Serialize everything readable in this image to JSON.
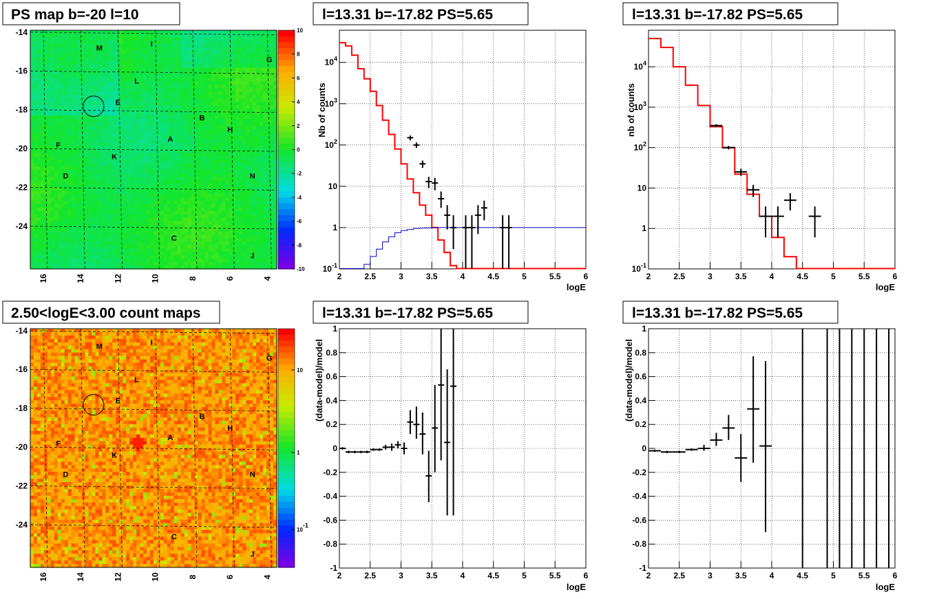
{
  "colors": {
    "model": "#ff0000",
    "efficiency": "#0000cc",
    "data": "#000000"
  },
  "map1": {
    "title": "PS map b=-20 l=10",
    "yticks": [
      "-14",
      "-16",
      "-18",
      "-20",
      "-22",
      "-24"
    ],
    "xticks": [
      "16",
      "14",
      "12",
      "10",
      "8",
      "6",
      "4"
    ],
    "palette_labels": [
      "10",
      "8",
      "6",
      "4",
      "2",
      "0",
      "-2",
      "-4",
      "-6",
      "-8",
      "-10"
    ],
    "sources": [
      {
        "label": "M",
        "l": 13.0,
        "b": -14.8
      },
      {
        "label": "I",
        "l": 10.2,
        "b": -14.6
      },
      {
        "label": "G",
        "l": 3.9,
        "b": -15.4
      },
      {
        "label": "L",
        "l": 11.0,
        "b": -16.5
      },
      {
        "label": "E",
        "l": 12.0,
        "b": -17.6
      },
      {
        "label": "B",
        "l": 7.5,
        "b": -18.4
      },
      {
        "label": "H",
        "l": 6.0,
        "b": -19.0
      },
      {
        "label": "A",
        "l": 9.2,
        "b": -19.5
      },
      {
        "label": "F",
        "l": 15.2,
        "b": -19.8
      },
      {
        "label": "K",
        "l": 12.2,
        "b": -20.4
      },
      {
        "label": "D",
        "l": 14.8,
        "b": -21.4
      },
      {
        "label": "N",
        "l": 4.8,
        "b": -21.4
      },
      {
        "label": "C",
        "l": 9.0,
        "b": -24.6
      },
      {
        "label": "J",
        "l": 4.8,
        "b": -25.5
      }
    ],
    "circle": {
      "l": 13.31,
      "b": -17.82
    }
  },
  "map2": {
    "title": "2.50<logE<3.00 count maps",
    "palette_labels": [
      "10",
      "1",
      "10^-1"
    ]
  },
  "chart_data": [
    {
      "type": "line",
      "title": "l=13.31 b=-17.82 PS=5.65",
      "xlabel": "logE",
      "ylabel": "Nb of counts",
      "xlim": [
        2,
        6
      ],
      "ylim": [
        0.1,
        60000
      ],
      "yscale": "log",
      "xticks": [
        "2",
        "2.5",
        "3",
        "3.5",
        "4",
        "4.5",
        "5",
        "5.5",
        "6"
      ],
      "yticks": [
        "10^-1",
        "1",
        "10",
        "10^2",
        "10^3",
        "10^4"
      ],
      "series": [
        {
          "kind": "model",
          "step": 0.1,
          "x": [
            2.0,
            2.1,
            2.2,
            2.3,
            2.4,
            2.5,
            2.6,
            2.7,
            2.8,
            2.9,
            3.0,
            3.1,
            3.2,
            3.3,
            3.4,
            3.5,
            3.6,
            3.7,
            3.8,
            3.9,
            4.0,
            4.1,
            4.2,
            4.3,
            4.4,
            4.5,
            4.6,
            4.7,
            4.8,
            4.9,
            5.0,
            5.1,
            5.2,
            5.3,
            5.4,
            5.5,
            5.6,
            5.7,
            5.8,
            5.9
          ],
          "y": [
            30000,
            25000,
            15000,
            7000,
            4000,
            2000,
            900,
            400,
            180,
            80,
            35,
            15,
            7,
            3.5,
            2,
            1,
            0.5,
            0.25,
            0.12,
            0.1,
            0.1,
            0.1,
            0.1,
            0.1,
            0.1,
            0.1,
            0.1,
            0.1,
            0.1,
            0.1,
            0.1,
            0.1,
            0.1,
            0.1,
            0.1,
            0.1,
            0.1,
            0.1,
            0.1,
            0.1
          ]
        },
        {
          "kind": "efficiency",
          "step": 0.1,
          "x": [
            2.0,
            2.1,
            2.2,
            2.3,
            2.4,
            2.5,
            2.6,
            2.7,
            2.8,
            2.9,
            3.0,
            3.1,
            3.2,
            3.3,
            3.4,
            3.5,
            3.6,
            3.7,
            3.8,
            3.9,
            4.0,
            4.1,
            4.2,
            4.3,
            4.4,
            4.5,
            4.6,
            4.7,
            4.8,
            4.9,
            5.0,
            5.1,
            5.2,
            5.3,
            5.4,
            5.5,
            5.6,
            5.7,
            5.8,
            5.9
          ],
          "y": [
            0.1,
            0.1,
            0.1,
            0.1,
            0.13,
            0.2,
            0.3,
            0.45,
            0.6,
            0.75,
            0.85,
            0.9,
            0.95,
            0.97,
            0.98,
            0.99,
            1,
            1,
            1,
            1,
            1,
            1,
            1,
            1,
            1,
            1,
            1,
            1,
            1,
            1,
            1,
            1,
            1,
            1,
            1,
            1,
            1,
            1,
            1,
            1
          ]
        },
        {
          "kind": "data",
          "points": [
            {
              "x": 3.15,
              "y": 150,
              "lo": 130,
              "hi": 170
            },
            {
              "x": 3.25,
              "y": 100,
              "lo": 85,
              "hi": 115
            },
            {
              "x": 3.35,
              "y": 35,
              "lo": 28,
              "hi": 42
            },
            {
              "x": 3.45,
              "y": 13,
              "lo": 9,
              "hi": 17
            },
            {
              "x": 3.55,
              "y": 12,
              "lo": 8,
              "hi": 16
            },
            {
              "x": 3.65,
              "y": 5,
              "lo": 3,
              "hi": 7.5
            },
            {
              "x": 3.75,
              "y": 2,
              "lo": 0.9,
              "hi": 3.5
            },
            {
              "x": 3.85,
              "y": 1,
              "lo": 0.3,
              "hi": 2
            },
            {
              "x": 4.05,
              "y": 1,
              "lo": 0.1,
              "hi": 2
            },
            {
              "x": 4.15,
              "y": 1,
              "lo": 0.1,
              "hi": 2
            },
            {
              "x": 4.25,
              "y": 2,
              "lo": 0.7,
              "hi": 3.5
            },
            {
              "x": 4.35,
              "y": 3,
              "lo": 1.5,
              "hi": 4.5
            },
            {
              "x": 4.65,
              "y": 1,
              "lo": 0.1,
              "hi": 2
            },
            {
              "x": 4.75,
              "y": 1,
              "lo": 0.1,
              "hi": 2
            }
          ]
        }
      ]
    },
    {
      "type": "line",
      "title": "l=13.31 b=-17.82 PS=5.65",
      "xlabel": "logE",
      "ylabel": "nb of counts",
      "xlim": [
        2,
        6
      ],
      "ylim": [
        0.1,
        80000
      ],
      "yscale": "log",
      "xticks": [
        "2",
        "2.5",
        "3",
        "3.5",
        "4",
        "4.5",
        "5",
        "5.5",
        "6"
      ],
      "yticks": [
        "10^-1",
        "1",
        "10",
        "10^2",
        "10^3",
        "10^4"
      ],
      "series": [
        {
          "kind": "model",
          "step": 0.2,
          "x": [
            2.0,
            2.2,
            2.4,
            2.6,
            2.8,
            3.0,
            3.2,
            3.4,
            3.6,
            3.8,
            4.0,
            4.2,
            4.4,
            4.6,
            4.8,
            5.0,
            5.2,
            5.4,
            5.6,
            5.8
          ],
          "y": [
            50000,
            30000,
            10000,
            3500,
            1100,
            330,
            100,
            22,
            7,
            2,
            0.6,
            0.2,
            0.1,
            0.1,
            0.1,
            0.1,
            0.1,
            0.1,
            0.1,
            0.1
          ]
        },
        {
          "kind": "data",
          "points": [
            {
              "x": 3.1,
              "y": 350,
              "lo": 320,
              "hi": 380,
              "hw": 0.1
            },
            {
              "x": 3.3,
              "y": 100,
              "lo": 90,
              "hi": 110,
              "hw": 0.1
            },
            {
              "x": 3.5,
              "y": 25,
              "lo": 20,
              "hi": 30,
              "hw": 0.1
            },
            {
              "x": 3.7,
              "y": 9,
              "lo": 6,
              "hi": 12,
              "hw": 0.1
            },
            {
              "x": 3.9,
              "y": 2,
              "lo": 0.6,
              "hi": 3.5,
              "hw": 0.1
            },
            {
              "x": 4.1,
              "y": 2,
              "lo": 0.6,
              "hi": 3.5,
              "hw": 0.1
            },
            {
              "x": 4.3,
              "y": 5,
              "lo": 2.8,
              "hi": 7.5,
              "hw": 0.1
            },
            {
              "x": 4.7,
              "y": 2,
              "lo": 0.6,
              "hi": 3.5,
              "hw": 0.1
            }
          ]
        }
      ]
    },
    {
      "type": "scatter",
      "title": "l=13.31 b=-17.82 PS=5.65",
      "xlabel": "logE",
      "ylabel": "(data-model)/model",
      "xlim": [
        2,
        6
      ],
      "ylim": [
        -1,
        1
      ],
      "xticks": [
        "2",
        "2.5",
        "3",
        "3.5",
        "4",
        "4.5",
        "5",
        "5.5",
        "6"
      ],
      "yticks": [
        "-1",
        "-0.8",
        "-0.6",
        "-0.4",
        "-0.2",
        "0",
        "0.2",
        "0.4",
        "0.6",
        "0.8",
        "1"
      ],
      "points": [
        {
          "x": 2.05,
          "y": 0,
          "lo": -0.01,
          "hi": 0.01
        },
        {
          "x": 2.15,
          "y": -0.03,
          "lo": -0.04,
          "hi": -0.02
        },
        {
          "x": 2.25,
          "y": -0.03,
          "lo": -0.04,
          "hi": -0.02
        },
        {
          "x": 2.35,
          "y": -0.03,
          "lo": -0.04,
          "hi": -0.02
        },
        {
          "x": 2.45,
          "y": -0.03,
          "lo": -0.04,
          "hi": -0.02
        },
        {
          "x": 2.55,
          "y": -0.01,
          "lo": -0.02,
          "hi": 0.0
        },
        {
          "x": 2.65,
          "y": -0.01,
          "lo": -0.02,
          "hi": 0.0
        },
        {
          "x": 2.75,
          "y": 0.01,
          "lo": -0.01,
          "hi": 0.03
        },
        {
          "x": 2.85,
          "y": 0.01,
          "lo": -0.02,
          "hi": 0.04
        },
        {
          "x": 2.95,
          "y": 0.03,
          "lo": 0.0,
          "hi": 0.06
        },
        {
          "x": 3.05,
          "y": 0,
          "lo": -0.05,
          "hi": 0.05
        },
        {
          "x": 3.15,
          "y": 0.22,
          "lo": 0.12,
          "hi": 0.32
        },
        {
          "x": 3.25,
          "y": 0.2,
          "lo": 0.08,
          "hi": 0.35
        },
        {
          "x": 3.35,
          "y": 0.12,
          "lo": -0.05,
          "hi": 0.3
        },
        {
          "x": 3.45,
          "y": -0.23,
          "lo": -0.45,
          "hi": -0.02
        },
        {
          "x": 3.55,
          "y": 0.17,
          "lo": -0.2,
          "hi": 0.53
        },
        {
          "x": 3.65,
          "y": 0.53,
          "lo": -0.1,
          "hi": 1.0
        },
        {
          "x": 3.75,
          "y": 0.05,
          "lo": -0.56,
          "hi": 0.66
        },
        {
          "x": 3.85,
          "y": 0.52,
          "lo": -0.56,
          "hi": 1.0
        }
      ]
    },
    {
      "type": "scatter",
      "title": "l=13.31 b=-17.82 PS=5.65",
      "xlabel": "logE",
      "ylabel": "(data-model)/model",
      "xlim": [
        2,
        6
      ],
      "ylim": [
        -1,
        1
      ],
      "xticks": [
        "2",
        "2.5",
        "3",
        "3.5",
        "4",
        "4.5",
        "5",
        "5.5",
        "6"
      ],
      "yticks": [
        "-1",
        "-0.8",
        "-0.6",
        "-0.4",
        "-0.2",
        "0",
        "0.2",
        "0.4",
        "0.6",
        "0.8",
        "1"
      ],
      "points": [
        {
          "x": 2.1,
          "y": -0.02,
          "lo": -0.03,
          "hi": -0.01,
          "hw": 0.1
        },
        {
          "x": 2.3,
          "y": -0.03,
          "lo": -0.04,
          "hi": -0.02,
          "hw": 0.1
        },
        {
          "x": 2.5,
          "y": -0.03,
          "lo": -0.04,
          "hi": -0.02,
          "hw": 0.1
        },
        {
          "x": 2.7,
          "y": -0.01,
          "lo": -0.02,
          "hi": 0.0,
          "hw": 0.1
        },
        {
          "x": 2.9,
          "y": 0.0,
          "lo": -0.02,
          "hi": 0.03,
          "hw": 0.1
        },
        {
          "x": 3.1,
          "y": 0.07,
          "lo": 0.02,
          "hi": 0.13,
          "hw": 0.1
        },
        {
          "x": 3.3,
          "y": 0.17,
          "lo": 0.07,
          "hi": 0.28,
          "hw": 0.1
        },
        {
          "x": 3.5,
          "y": -0.08,
          "lo": -0.28,
          "hi": 0.12,
          "hw": 0.1
        },
        {
          "x": 3.7,
          "y": 0.33,
          "lo": -0.12,
          "hi": 0.77,
          "hw": 0.1
        },
        {
          "x": 3.9,
          "y": 0.02,
          "lo": -0.7,
          "hi": 0.73,
          "hw": 0.1
        },
        {
          "x": 4.5,
          "y": 1.0,
          "lo": -1.0,
          "hi": 1.0,
          "hw": 0
        },
        {
          "x": 4.9,
          "y": 1.0,
          "lo": -1.0,
          "hi": 1.0,
          "hw": 0
        },
        {
          "x": 5.1,
          "y": 1.0,
          "lo": -1.0,
          "hi": 1.0,
          "hw": 0
        },
        {
          "x": 5.3,
          "y": 1.0,
          "lo": -1.0,
          "hi": 1.0,
          "hw": 0
        },
        {
          "x": 5.5,
          "y": 1.0,
          "lo": -1.0,
          "hi": 1.0,
          "hw": 0
        },
        {
          "x": 5.7,
          "y": 1.0,
          "lo": -1.0,
          "hi": 1.0,
          "hw": 0
        },
        {
          "x": 5.9,
          "y": 1.0,
          "lo": -1.0,
          "hi": 1.0,
          "hw": 0
        }
      ]
    }
  ]
}
